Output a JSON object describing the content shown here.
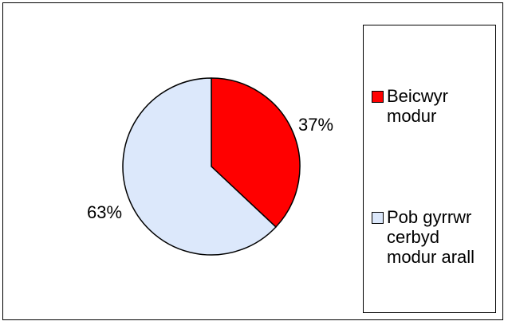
{
  "chart_data": {
    "type": "pie",
    "slices": [
      {
        "name": "Beicwyr modur",
        "value": 37,
        "label": "37%",
        "color": "#ff0000"
      },
      {
        "name": "Pob gyrrwr cerbyd modur arall",
        "value": 63,
        "label": "63%",
        "color": "#dce8fb"
      }
    ],
    "legend": {
      "placement": "right",
      "items": [
        {
          "lines": [
            "Beicwyr",
            "modur"
          ],
          "color": "#ff0000"
        },
        {
          "lines": [
            "Pob gyrrwr",
            "cerbyd",
            "modur arall"
          ],
          "color": "#dce8fb"
        }
      ]
    }
  }
}
